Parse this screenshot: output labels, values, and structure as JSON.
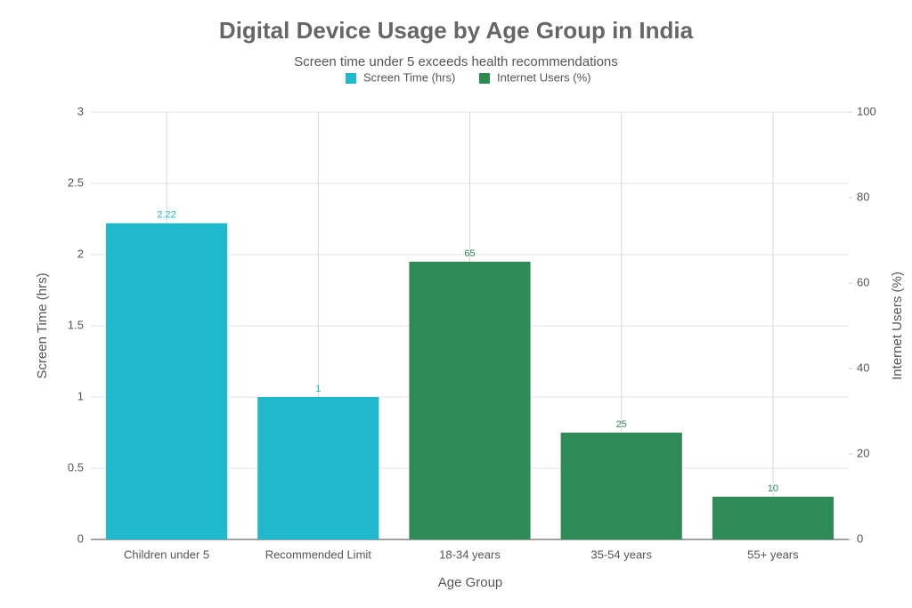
{
  "chart_data": {
    "type": "bar",
    "title": "Digital Device Usage by Age Group in India",
    "subtitle": "Screen time under 5 exceeds health recommendations",
    "x_label": "Age Group",
    "y_label": "Screen Time (hrs)",
    "y2_label": "Internet Users (%)",
    "categories": [
      "Children under 5",
      "Recommended Limit",
      "18-34 years",
      "35-54 years",
      "55+ years"
    ],
    "series": [
      {
        "name": "Screen Time (hrs)",
        "color": "#1fb8cd",
        "values": [
          2.22,
          1,
          null,
          null,
          null
        ]
      },
      {
        "name": "Internet Users (%)",
        "color": "#2e8b57",
        "axis": "y2",
        "values": [
          null,
          null,
          65,
          25,
          10
        ]
      }
    ],
    "ylim": [
      0,
      3
    ],
    "yticks": [
      0,
      0.5,
      1,
      1.5,
      2,
      2.5,
      3
    ],
    "y2lim": [
      0,
      100
    ],
    "y2ticks": [
      0,
      20,
      40,
      60,
      80,
      100
    ],
    "grid": true,
    "legend": "top"
  }
}
